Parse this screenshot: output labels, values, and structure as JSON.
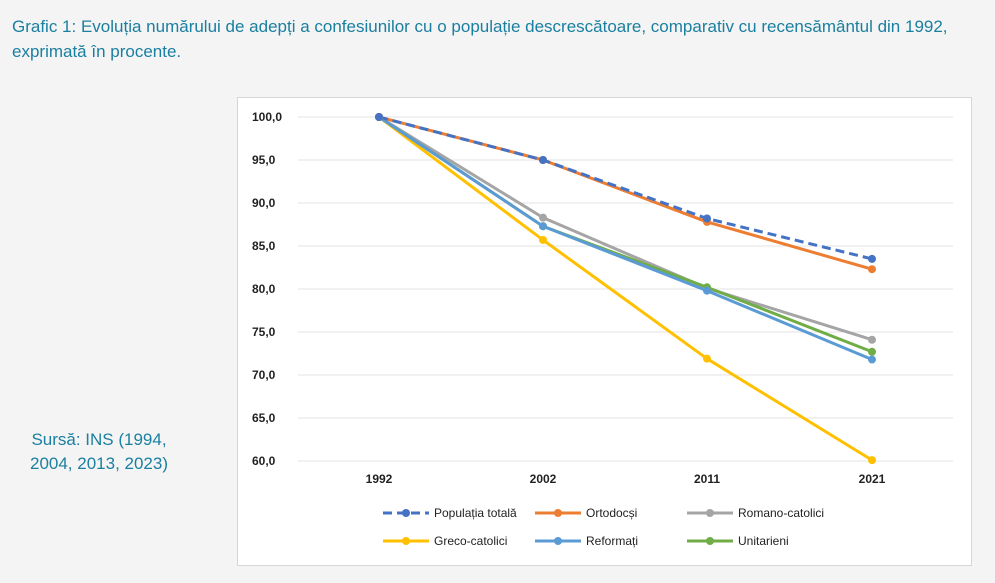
{
  "caption": {
    "title": "Grafic 1: Evoluția numărului de adepți a confesiunilor cu o populație descrescătoare, comparativ cu recensământul din 1992, exprimată în procente."
  },
  "source": {
    "line1": "Sursă: INS (1994,",
    "line2": "2004, 2013, 2023)"
  },
  "chart_data": {
    "type": "line",
    "title": "",
    "xlabel": "",
    "ylabel": "",
    "categories": [
      "1992",
      "2002",
      "2011",
      "2021"
    ],
    "ylim": [
      60,
      100
    ],
    "yticks": [
      "100,0",
      "95,0",
      "90,0",
      "85,0",
      "80,0",
      "75,0",
      "70,0",
      "65,0",
      "60,0"
    ],
    "grid": true,
    "legend_position": "bottom",
    "series": [
      {
        "name": "Populația totală",
        "color": "#4472c4",
        "dashed": true,
        "values": [
          100.0,
          95.0,
          88.2,
          83.5
        ]
      },
      {
        "name": "Ortodocși",
        "color": "#ed7d31",
        "dashed": false,
        "values": [
          100.0,
          95.0,
          87.8,
          82.3
        ]
      },
      {
        "name": "Romano-catolici",
        "color": "#a5a5a5",
        "dashed": false,
        "values": [
          100.0,
          88.3,
          80.1,
          74.1
        ]
      },
      {
        "name": "Greco-catolici",
        "color": "#ffc000",
        "dashed": false,
        "values": [
          100.0,
          85.7,
          71.9,
          60.1
        ]
      },
      {
        "name": "Reformați",
        "color": "#5b9bd5",
        "dashed": false,
        "values": [
          100.0,
          87.3,
          79.8,
          71.8
        ]
      },
      {
        "name": "Unitarieni",
        "color": "#70ad47",
        "dashed": false,
        "values": [
          100.0,
          87.3,
          80.2,
          72.7
        ]
      }
    ]
  }
}
